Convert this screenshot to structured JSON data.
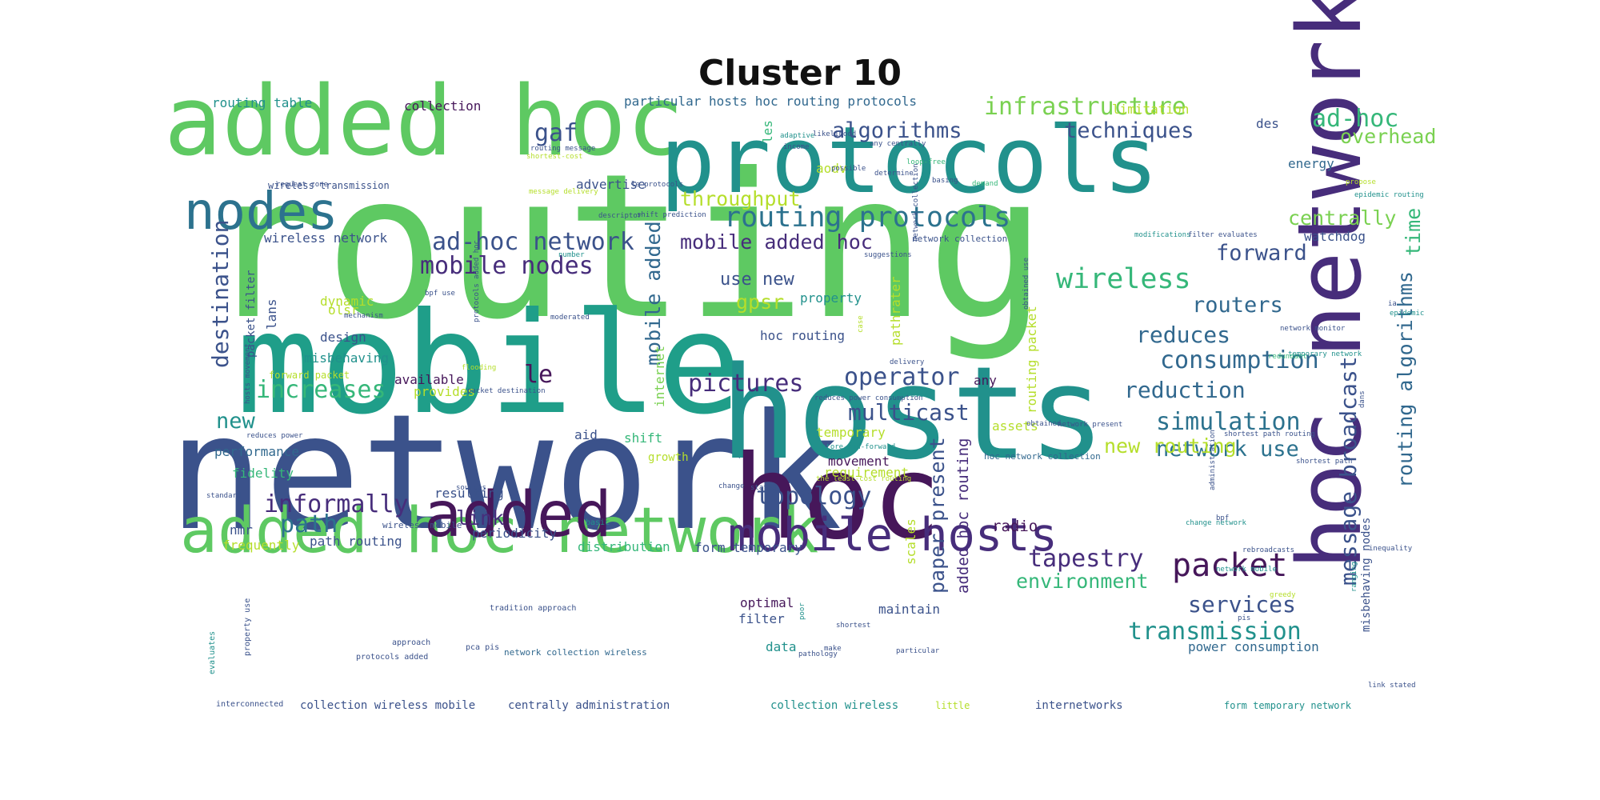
{
  "title": "Cluster 10",
  "palette": {
    "dark_purple": "#46175a",
    "purple": "#472d7b",
    "indigo": "#3b528b",
    "blue": "#31688e",
    "steel": "#2c728e",
    "teal": "#21918c",
    "sea": "#1f9e89",
    "green": "#35b779",
    "light_green": "#5ec962",
    "lime": "#7ad151",
    "yellow_green": "#b5de2b",
    "yellow": "#dde318"
  },
  "words": [
    {
      "text": "routing",
      "size": 1.0,
      "color": "#5ec962"
    },
    {
      "text": "network",
      "size": 0.82,
      "color": "#3b528b"
    },
    {
      "text": "mobile",
      "size": 0.7,
      "color": "#1f9e89"
    },
    {
      "text": "hosts",
      "size": 0.66,
      "color": "#21918c"
    },
    {
      "text": "hoc",
      "size": 0.58,
      "color": "#46175a"
    },
    {
      "text": "added hoc",
      "size": 0.5,
      "color": "#5ec962"
    },
    {
      "text": "protocols",
      "size": 0.45,
      "color": "#21918c"
    },
    {
      "text": "hoc network",
      "size": 0.4,
      "color": "#472d7b"
    },
    {
      "text": "added hoc network",
      "size": 0.3,
      "color": "#5ec962"
    },
    {
      "text": "added",
      "size": 0.3,
      "color": "#46175a"
    },
    {
      "text": "nodes",
      "size": 0.26,
      "color": "#2c728e"
    },
    {
      "text": "mobile hosts",
      "size": 0.24,
      "color": "#472d7b"
    },
    {
      "text": "routing protocols",
      "size": 0.14,
      "color": "#2c728e"
    },
    {
      "text": "ad-hoc network",
      "size": 0.12,
      "color": "#3b528b"
    },
    {
      "text": "mobile nodes",
      "size": 0.12,
      "color": "#472d7b"
    },
    {
      "text": "infrastructure",
      "size": 0.12,
      "color": "#7ad151"
    },
    {
      "text": "ad-hoc",
      "size": 0.12,
      "color": "#35b779"
    },
    {
      "text": "algorithms",
      "size": 0.11,
      "color": "#3b528b"
    },
    {
      "text": "techniques",
      "size": 0.11,
      "color": "#3b528b"
    },
    {
      "text": "gaf",
      "size": 0.12,
      "color": "#3b528b"
    },
    {
      "text": "wireless",
      "size": 0.13,
      "color": "#35b779"
    },
    {
      "text": "packet",
      "size": 0.15,
      "color": "#46175a"
    },
    {
      "text": "forward",
      "size": 0.11,
      "color": "#3b528b"
    },
    {
      "text": "routers",
      "size": 0.11,
      "color": "#31688e"
    },
    {
      "text": "reduces",
      "size": 0.11,
      "color": "#31688e"
    },
    {
      "text": "consumption",
      "size": 0.12,
      "color": "#31688e"
    },
    {
      "text": "reduction",
      "size": 0.11,
      "color": "#31688e"
    },
    {
      "text": "simulation",
      "size": 0.12,
      "color": "#2c728e"
    },
    {
      "text": "network use",
      "size": 0.1,
      "color": "#2c728e"
    },
    {
      "text": "transmission",
      "size": 0.12,
      "color": "#21918c"
    },
    {
      "text": "services",
      "size": 0.11,
      "color": "#3b528b"
    },
    {
      "text": "environment",
      "size": 0.1,
      "color": "#35b779"
    },
    {
      "text": "tapestry",
      "size": 0.12,
      "color": "#472d7b"
    },
    {
      "text": "topology",
      "size": 0.12,
      "color": "#3b528b"
    },
    {
      "text": "pictures",
      "size": 0.12,
      "color": "#472d7b"
    },
    {
      "text": "operator",
      "size": 0.12,
      "color": "#3b528b"
    },
    {
      "text": "multicast",
      "size": 0.11,
      "color": "#3b528b"
    },
    {
      "text": "increases",
      "size": 0.12,
      "color": "#35b779"
    },
    {
      "text": "informally",
      "size": 0.12,
      "color": "#472d7b"
    },
    {
      "text": "new routing",
      "size": 0.11,
      "color": "#b5de2b"
    },
    {
      "text": "destination",
      "size": 0.12,
      "color": "#3b528b"
    },
    {
      "text": "message broadcast",
      "size": 0.12,
      "color": "#3b528b"
    },
    {
      "text": "routing algorithms",
      "size": 0.12,
      "color": "#31688e"
    },
    {
      "text": "time",
      "size": 0.1,
      "color": "#35b779"
    },
    {
      "text": "overhead",
      "size": 0.1,
      "color": "#7ad151"
    },
    {
      "text": "throughput",
      "size": 0.1,
      "color": "#b5de2b"
    },
    {
      "text": "centrally",
      "size": 0.1,
      "color": "#7ad151"
    },
    {
      "text": "mobile added hoc",
      "size": 0.1,
      "color": "#472d7b"
    },
    {
      "text": "mobile added",
      "size": 0.1,
      "color": "#31688e"
    },
    {
      "text": "gpsr",
      "size": 0.1,
      "color": "#b5de2b"
    },
    {
      "text": "use new",
      "size": 0.09,
      "color": "#3b528b"
    },
    {
      "text": "le",
      "size": 0.1,
      "color": "#46175a"
    },
    {
      "text": "new",
      "size": 0.1,
      "color": "#21918c"
    },
    {
      "text": "path",
      "size": 0.1,
      "color": "#2c728e"
    },
    {
      "text": "link",
      "size": 0.1,
      "color": "#472d7b"
    },
    {
      "text": "paper present",
      "size": 0.1,
      "color": "#3b528b"
    },
    {
      "text": "added hoc routing",
      "size": 0.07,
      "color": "#472d7b"
    },
    {
      "text": "radio",
      "size": 0.07,
      "color": "#46175a"
    },
    {
      "text": "routing table",
      "size": 0.06,
      "color": "#21918c"
    },
    {
      "text": "collection",
      "size": 0.06,
      "color": "#46175a"
    },
    {
      "text": "particular hosts hoc routing protocols",
      "size": 0.06,
      "color": "#31688e"
    },
    {
      "text": "limitation",
      "size": 0.06,
      "color": "#b5de2b"
    },
    {
      "text": "energy",
      "size": 0.06,
      "color": "#31688e"
    },
    {
      "text": "watchdog",
      "size": 0.06,
      "color": "#3b528b"
    },
    {
      "text": "wireless network",
      "size": 0.06,
      "color": "#3b528b"
    },
    {
      "text": "advertise",
      "size": 0.06,
      "color": "#3b528b"
    },
    {
      "text": "wireless transmission",
      "size": 0.04,
      "color": "#3b528b"
    },
    {
      "text": "les",
      "size": 0.06,
      "color": "#35b779"
    },
    {
      "text": "aodv",
      "size": 0.06,
      "color": "#b5de2b"
    },
    {
      "text": "des",
      "size": 0.06,
      "color": "#3b528b"
    },
    {
      "text": "olsr",
      "size": 0.06,
      "color": "#b5de2b"
    },
    {
      "text": "dynamic",
      "size": 0.06,
      "color": "#b5de2b"
    },
    {
      "text": "lans",
      "size": 0.06,
      "color": "#3b528b"
    },
    {
      "text": "design",
      "size": 0.06,
      "color": "#3b528b"
    },
    {
      "text": "misbehaving",
      "size": 0.06,
      "color": "#21918c"
    },
    {
      "text": "packet filter",
      "size": 0.05,
      "color": "#3b528b"
    },
    {
      "text": "property",
      "size": 0.06,
      "color": "#21918c"
    },
    {
      "text": "hoc routing",
      "size": 0.06,
      "color": "#3b528b"
    },
    {
      "text": "pathrater",
      "size": 0.06,
      "color": "#b5de2b"
    },
    {
      "text": "routing packet",
      "size": 0.06,
      "color": "#b5de2b"
    },
    {
      "text": "available",
      "size": 0.06,
      "color": "#46175a"
    },
    {
      "text": "provides",
      "size": 0.06,
      "color": "#b5de2b"
    },
    {
      "text": "internet",
      "size": 0.06,
      "color": "#7ad151"
    },
    {
      "text": "any",
      "size": 0.06,
      "color": "#46175a"
    },
    {
      "text": "assets",
      "size": 0.06,
      "color": "#b5de2b"
    },
    {
      "text": "temporary",
      "size": 0.06,
      "color": "#b5de2b"
    },
    {
      "text": "performance",
      "size": 0.06,
      "color": "#31688e"
    },
    {
      "text": "fidelity",
      "size": 0.06,
      "color": "#35b779"
    },
    {
      "text": "aid",
      "size": 0.06,
      "color": "#3b528b"
    },
    {
      "text": "shift",
      "size": 0.06,
      "color": "#35b779"
    },
    {
      "text": "growth",
      "size": 0.05,
      "color": "#b5de2b"
    },
    {
      "text": "movement",
      "size": 0.06,
      "color": "#46175a"
    },
    {
      "text": "requirement",
      "size": 0.06,
      "color": "#b5de2b"
    },
    {
      "text": "resulting",
      "size": 0.06,
      "color": "#3b528b"
    },
    {
      "text": "nmr",
      "size": 0.06,
      "color": "#3b528b"
    },
    {
      "text": "frequently",
      "size": 0.06,
      "color": "#b5de2b"
    },
    {
      "text": "path routing",
      "size": 0.06,
      "color": "#3b528b"
    },
    {
      "text": "periodicity",
      "size": 0.06,
      "color": "#3b528b"
    },
    {
      "text": "distribution",
      "size": 0.06,
      "color": "#35b779"
    },
    {
      "text": "form temporary",
      "size": 0.06,
      "color": "#3b528b"
    },
    {
      "text": "scales",
      "size": 0.06,
      "color": "#b5de2b"
    },
    {
      "text": "maintain",
      "size": 0.06,
      "color": "#3b528b"
    },
    {
      "text": "optimal",
      "size": 0.06,
      "color": "#46175a"
    },
    {
      "text": "filter",
      "size": 0.06,
      "color": "#3b528b"
    },
    {
      "text": "data",
      "size": 0.06,
      "color": "#21918c"
    },
    {
      "text": "power consumption",
      "size": 0.06,
      "color": "#31688e"
    },
    {
      "text": "misbehaving nodes",
      "size": 0.05,
      "color": "#3b528b"
    },
    {
      "text": "network collection",
      "size": 0.04,
      "color": "#3b528b"
    },
    {
      "text": "hoc network collection",
      "size": 0.04,
      "color": "#31688e"
    },
    {
      "text": "collection wireless mobile",
      "size": 0.05,
      "color": "#3b528b"
    },
    {
      "text": "centrally administration",
      "size": 0.05,
      "color": "#3b528b"
    },
    {
      "text": "collection wireless",
      "size": 0.05,
      "color": "#21918c"
    },
    {
      "text": "little",
      "size": 0.04,
      "color": "#b5de2b"
    },
    {
      "text": "internetworks",
      "size": 0.05,
      "color": "#3b528b"
    },
    {
      "text": "form temporary network",
      "size": 0.04,
      "color": "#21918c"
    },
    {
      "text": "network collection wireless",
      "size": 0.04,
      "color": "#31688e"
    },
    {
      "text": "interconnected",
      "size": 0.03,
      "color": "#3b528b"
    },
    {
      "text": "evaluates",
      "size": 0.03,
      "color": "#21918c"
    },
    {
      "text": "property use",
      "size": 0.03,
      "color": "#3b528b"
    },
    {
      "text": "protocols added",
      "size": 0.03,
      "color": "#3b528b"
    },
    {
      "text": "approach",
      "size": 0.03,
      "color": "#3b528b"
    },
    {
      "text": "pca pis",
      "size": 0.03,
      "color": "#3b528b"
    },
    {
      "text": "tradition approach",
      "size": 0.03,
      "color": "#3b528b"
    },
    {
      "text": "wireless mobile",
      "size": 0.04,
      "color": "#3b528b"
    },
    {
      "text": "basic",
      "size": 0.03,
      "color": "#21918c"
    },
    {
      "text": "standard",
      "size": 0.03,
      "color": "#3b528b"
    },
    {
      "text": "reduces power",
      "size": 0.03,
      "color": "#3b528b"
    },
    {
      "text": "forward packet",
      "size": 0.03,
      "color": "#b5de2b"
    },
    {
      "text": "hosts movement",
      "size": 0.03,
      "color": "#3b528b"
    },
    {
      "text": "flooding",
      "size": 0.03,
      "color": "#b5de2b"
    },
    {
      "text": "packet destination",
      "size": 0.03,
      "color": "#3b528b"
    },
    {
      "text": "mechanism",
      "size": 0.03,
      "color": "#3b528b"
    },
    {
      "text": "bpf use",
      "size": 0.03,
      "color": "#3b528b"
    },
    {
      "text": "protocols added hoc",
      "size": 0.03,
      "color": "#3b528b"
    },
    {
      "text": "moderated",
      "size": 0.03,
      "color": "#3b528b"
    },
    {
      "text": "number",
      "size": 0.03,
      "color": "#21918c"
    },
    {
      "text": "descriptor",
      "size": 0.03,
      "color": "#3b528b"
    },
    {
      "text": "shift prediction",
      "size": 0.03,
      "color": "#3b528b"
    },
    {
      "text": "suggestions",
      "size": 0.03,
      "color": "#3b528b"
    },
    {
      "text": "network collection",
      "size": 0.03,
      "color": "#3b528b"
    },
    {
      "text": "obtained use",
      "size": 0.03,
      "color": "#3b528b"
    },
    {
      "text": "modifications",
      "size": 0.03,
      "color": "#21918c"
    },
    {
      "text": "filter evaluates",
      "size": 0.03,
      "color": "#3b528b"
    },
    {
      "text": "routing message",
      "size": 0.03,
      "color": "#3b528b"
    },
    {
      "text": "shortest-cost",
      "size": 0.03,
      "color": "#b5de2b"
    },
    {
      "text": "request zone",
      "size": 0.03,
      "color": "#3b528b"
    },
    {
      "text": "message delivery",
      "size": 0.03,
      "color": "#b5de2b"
    },
    {
      "text": "le protocols",
      "size": 0.03,
      "color": "#3b528b"
    },
    {
      "text": "likelihood",
      "size": 0.03,
      "color": "#3b528b"
    },
    {
      "text": "adaptive",
      "size": 0.03,
      "color": "#21918c"
    },
    {
      "text": "income",
      "size": 0.03,
      "color": "#3b528b"
    },
    {
      "text": "any centrally",
      "size": 0.04,
      "color": "#3b528b"
    },
    {
      "text": "possible",
      "size": 0.03,
      "color": "#3b528b"
    },
    {
      "text": "determine",
      "size": 0.03,
      "color": "#3b528b"
    },
    {
      "text": "loop-free",
      "size": 0.03,
      "color": "#35b779"
    },
    {
      "text": "basing",
      "size": 0.03,
      "color": "#3b528b"
    },
    {
      "text": "demand",
      "size": 0.03,
      "color": "#35b779"
    },
    {
      "text": "propose",
      "size": 0.03,
      "color": "#b5de2b"
    },
    {
      "text": "epidemic routing",
      "size": 0.03,
      "color": "#21918c"
    },
    {
      "text": "case",
      "size": 0.03,
      "color": "#b5de2b"
    },
    {
      "text": "delivery",
      "size": 0.03,
      "color": "#3b528b"
    },
    {
      "text": "reduces power consumption",
      "size": 0.03,
      "color": "#3b528b"
    },
    {
      "text": "improved",
      "size": 0.03,
      "color": "#21918c"
    },
    {
      "text": "obtained",
      "size": 0.03,
      "color": "#3b528b"
    },
    {
      "text": "network present",
      "size": 0.03,
      "color": "#3b528b"
    },
    {
      "text": "store-and-forward",
      "size": 0.03,
      "color": "#21918c"
    },
    {
      "text": "shortest path routing",
      "size": 0.03,
      "color": "#3b528b"
    },
    {
      "text": "network monitor",
      "size": 0.03,
      "color": "#3b528b"
    },
    {
      "text": "redundant",
      "size": 0.03,
      "color": "#35b779"
    },
    {
      "text": "temporary network",
      "size": 0.03,
      "color": "#21918c"
    },
    {
      "text": "dans",
      "size": 0.03,
      "color": "#3b528b"
    },
    {
      "text": "ia",
      "size": 0.03,
      "color": "#3b528b"
    },
    {
      "text": "epidemic",
      "size": 0.03,
      "color": "#21918c"
    },
    {
      "text": "shortest path",
      "size": 0.03,
      "color": "#3b528b"
    },
    {
      "text": "bpf",
      "size": 0.03,
      "color": "#3b528b"
    },
    {
      "text": "change network",
      "size": 0.03,
      "color": "#21918c"
    },
    {
      "text": "administration",
      "size": 0.03,
      "color": "#3b528b"
    },
    {
      "text": "rebroadcasts",
      "size": 0.03,
      "color": "#3b528b"
    },
    {
      "text": "network mobile",
      "size": 0.03,
      "color": "#21918c"
    },
    {
      "text": "inequality",
      "size": 0.03,
      "color": "#3b528b"
    },
    {
      "text": "greedy",
      "size": 0.03,
      "color": "#b5de2b"
    },
    {
      "text": "pis",
      "size": 0.03,
      "color": "#3b528b"
    },
    {
      "text": "ranging",
      "size": 0.03,
      "color": "#21918c"
    },
    {
      "text": "link stated",
      "size": 0.03,
      "color": "#3b528b"
    },
    {
      "text": "particular",
      "size": 0.03,
      "color": "#3b528b"
    },
    {
      "text": "make",
      "size": 0.03,
      "color": "#3b528b"
    },
    {
      "text": "pathology",
      "size": 0.03,
      "color": "#3b528b"
    },
    {
      "text": "shortest",
      "size": 0.03,
      "color": "#3b528b"
    },
    {
      "text": "poor",
      "size": 0.03,
      "color": "#21918c"
    },
    {
      "text": "change",
      "size": 0.03,
      "color": "#3b528b"
    },
    {
      "text": "stated",
      "size": 0.03,
      "color": "#3b528b"
    },
    {
      "text": "the least-cost routing",
      "size": 0.03,
      "color": "#b5de2b"
    },
    {
      "text": "sources",
      "size": 0.03,
      "color": "#3b528b"
    }
  ]
}
